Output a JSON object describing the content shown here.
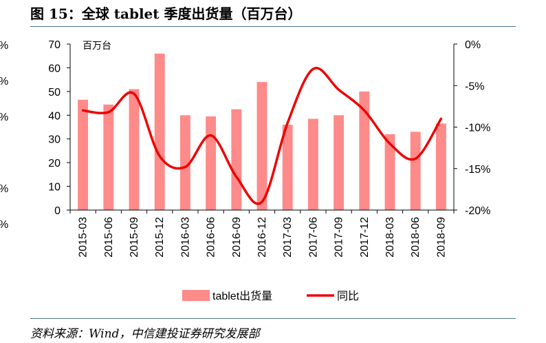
{
  "figure": {
    "title": "图 15：全球 tablet 季度出货量（百万台）",
    "source": "资料来源：Wind，中信建投证券研究发展部",
    "edge_ticks": [
      "%",
      "%",
      "%",
      "%",
      "%"
    ]
  },
  "chart_data": {
    "type": "bar",
    "title": "",
    "unit_label": "百万台",
    "categories": [
      "2015-03",
      "2015-06",
      "2015-09",
      "2015-12",
      "2016-03",
      "2016-06",
      "2016-09",
      "2016-12",
      "2017-03",
      "2017-06",
      "2017-09",
      "2017-12",
      "2018-03",
      "2018-06",
      "2018-09"
    ],
    "series": [
      {
        "name": "tablet出货量",
        "type": "bar",
        "axis": "left",
        "color": "#ff8a8a",
        "values": [
          46.5,
          44.5,
          51.0,
          66.0,
          40.0,
          39.5,
          42.5,
          54.0,
          36.0,
          38.5,
          40.0,
          50.0,
          32.0,
          33.0,
          36.5
        ]
      },
      {
        "name": "同比",
        "type": "line",
        "axis": "right",
        "color": "#ee0000",
        "values": [
          -8.0,
          -8.2,
          -6.0,
          -13.5,
          -14.8,
          -11.0,
          -16.0,
          -19.0,
          -9.5,
          -3.0,
          -5.5,
          -8.0,
          -12.0,
          -13.8,
          -9.0
        ]
      }
    ],
    "yleft": {
      "lim": [
        0,
        70
      ],
      "ticks": [
        "0",
        "10",
        "20",
        "30",
        "40",
        "50",
        "60",
        "70"
      ]
    },
    "yright": {
      "lim": [
        -20,
        0
      ],
      "ticks": [
        "-20%",
        "-15%",
        "-10%",
        "-5%",
        "0%"
      ]
    },
    "legend": {
      "position": "bottom",
      "entries": [
        "tablet出货量",
        "同比"
      ]
    },
    "grid": false
  }
}
